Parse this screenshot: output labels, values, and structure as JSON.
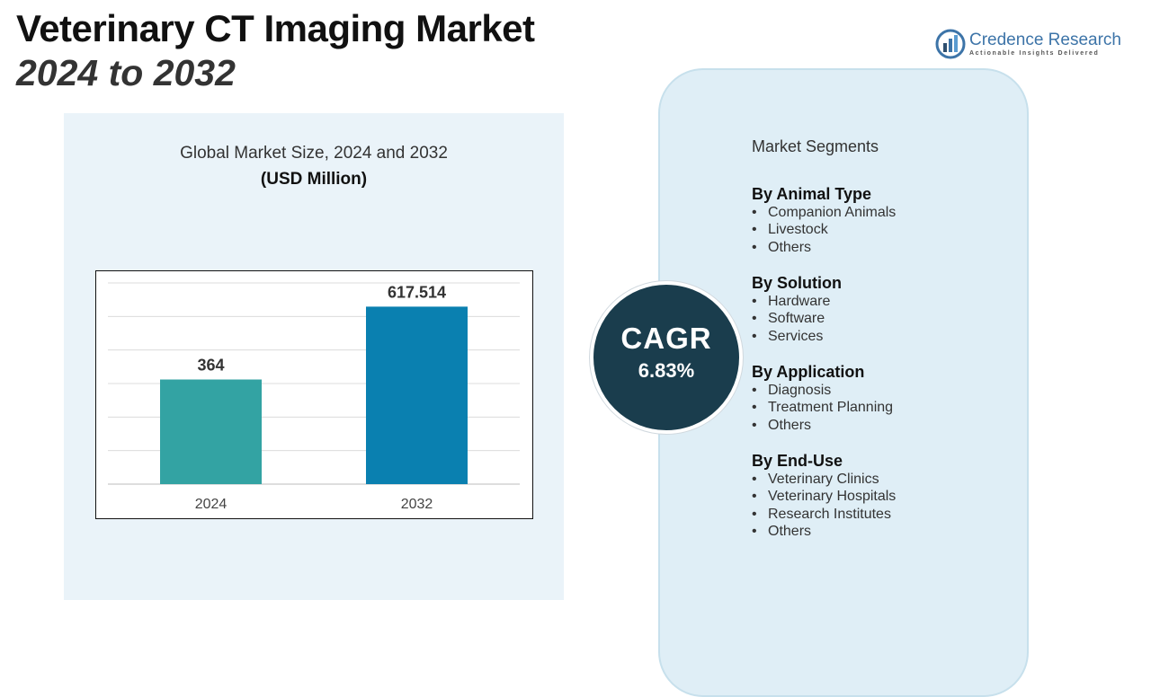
{
  "header": {
    "title_line1": "Veterinary CT Imaging Market",
    "title_line2": "2024 to 2032"
  },
  "logo": {
    "name": "Credence Research",
    "tagline": "Actionable Insights Delivered",
    "icon": "bar-chart-globe-icon"
  },
  "chart_data": {
    "type": "bar",
    "title": "Global Market Size, 2024 and 2032",
    "subtitle": "(USD Million)",
    "categories": [
      "2024",
      "2032"
    ],
    "values": [
      364,
      617.514
    ],
    "value_labels": [
      "364",
      "617.514"
    ],
    "colors": [
      "#33a3a3",
      "#0a80b0"
    ],
    "ylim": [
      0,
      700
    ],
    "grid": true,
    "legend": "none"
  },
  "cagr": {
    "label": "CAGR",
    "value": "6.83%"
  },
  "segments": {
    "title": "Market Segments",
    "groups": [
      {
        "heading": "By Animal Type",
        "items": [
          "Companion Animals",
          "Livestock",
          "Others"
        ]
      },
      {
        "heading": "By Solution",
        "items": [
          "Hardware",
          "Software",
          "Services"
        ]
      },
      {
        "heading": "By Application",
        "items": [
          "Diagnosis",
          "Treatment Planning",
          "Others"
        ]
      },
      {
        "heading": "By End-Use",
        "items": [
          "Veterinary Clinics",
          "Veterinary Hospitals",
          "Research Institutes",
          "Others"
        ]
      }
    ]
  }
}
